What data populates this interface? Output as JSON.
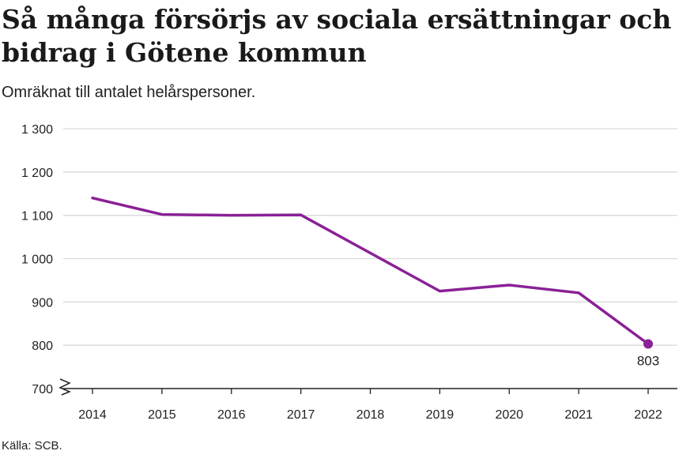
{
  "title": "Så många försörjs av sociala ersättningar och bidrag i Götene kommun",
  "subtitle": "Omräknat till antalet helårspersoner.",
  "source": "Källa: SCB.",
  "colors": {
    "line": "#8a2196",
    "grid": "#d9d9d9",
    "axis": "#222222",
    "text": "#222222"
  },
  "chart_data": {
    "type": "line",
    "title": "Så många försörjs av sociala ersättningar och bidrag i Götene kommun",
    "subtitle": "Omräknat till antalet helårspersoner.",
    "xlabel": "",
    "ylabel": "",
    "x": [
      2014,
      2015,
      2016,
      2017,
      2018,
      2019,
      2020,
      2021,
      2022
    ],
    "values": [
      1140,
      1102,
      1100,
      1101,
      1013,
      925,
      939,
      921,
      803
    ],
    "ylim": [
      700,
      1300
    ],
    "y_ticks": [
      700,
      800,
      900,
      1000,
      1100,
      1200,
      1300
    ],
    "y_tick_labels": [
      "700",
      "800",
      "900",
      "1 000",
      "1 100",
      "1 200",
      "1 300"
    ],
    "x_tick_labels": [
      "2014",
      "2015",
      "2016",
      "2017",
      "2018",
      "2019",
      "2020",
      "2021",
      "2022"
    ],
    "axis_break": true,
    "grid": true,
    "end_label": "803"
  }
}
